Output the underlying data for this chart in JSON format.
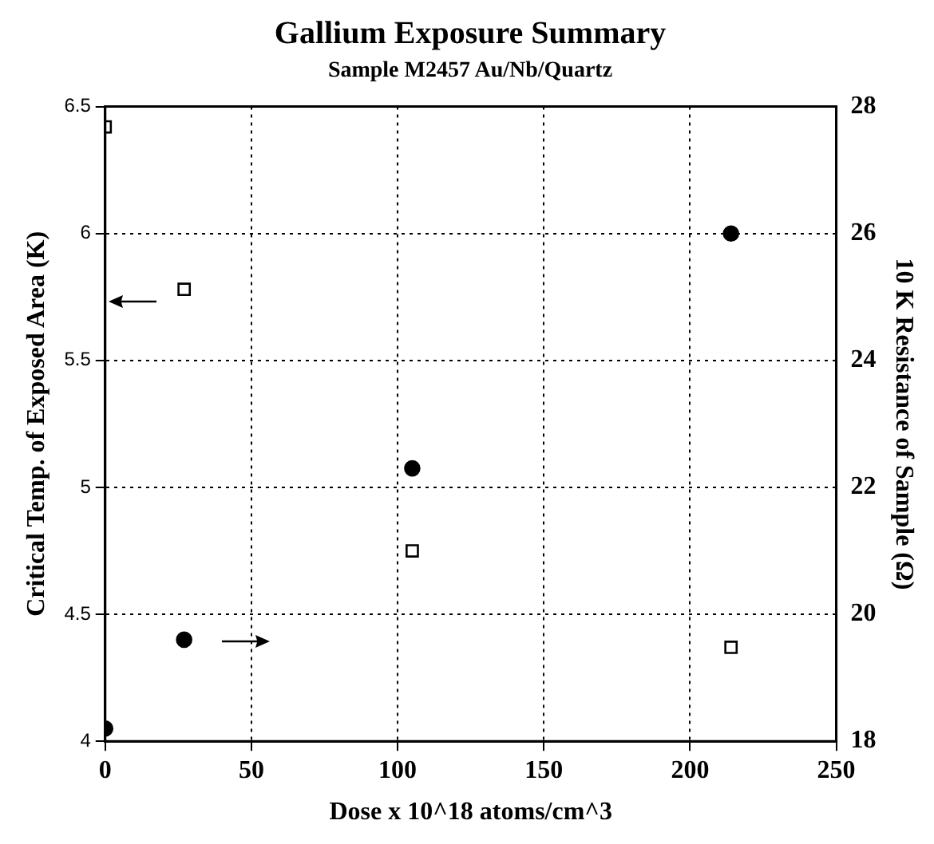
{
  "chart_data": {
    "type": "scatter",
    "title": "Gallium Exposure Summary",
    "subtitle": "Sample M2457 Au/Nb/Quartz",
    "xlabel": "Dose x 10^18 atoms/cm^3",
    "ylabel": "Critical Temp. of Exposed Area (K)",
    "y2label": "10 K Resistance of Sample (Ω)",
    "series": [
      {
        "color": "#000000",
        "marker": "square",
        "x": [
          0,
          27,
          105,
          214
        ],
        "values": [
          6.42,
          5.78,
          4.75,
          4.37
        ]
      },
      {
        "color": "#000000",
        "marker": "circle",
        "axis": "y2",
        "x": [
          0,
          27,
          105,
          214
        ],
        "values": [
          18.2,
          19.6,
          22.3,
          26.0
        ]
      }
    ],
    "xlim": [
      0,
      250
    ],
    "xticks": [
      0,
      50,
      100,
      150,
      200,
      250
    ],
    "ylim": [
      4,
      6.5
    ],
    "yticks": [
      4,
      4.5,
      5,
      5.5,
      6,
      6.5
    ],
    "y2lim": [
      18,
      28
    ],
    "y2ticks": [
      18,
      20,
      22,
      24,
      26,
      28
    ],
    "grid": true,
    "legend": false
  }
}
